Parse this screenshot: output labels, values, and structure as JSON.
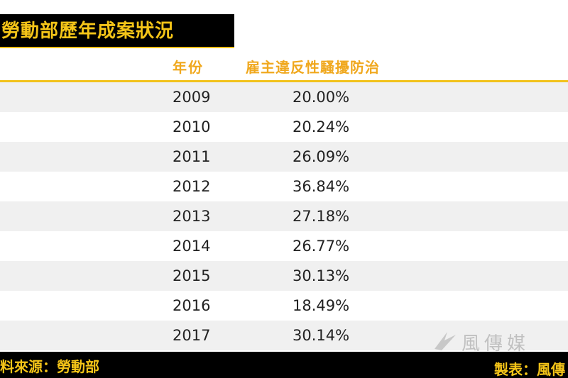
{
  "title": "勞動部歷年成案狀況",
  "table": {
    "headers": {
      "year": "年份",
      "rate": "雇主違反性騷擾防治"
    },
    "rows": [
      {
        "year": "2009",
        "rate": "20.00%"
      },
      {
        "year": "2010",
        "rate": "20.24%"
      },
      {
        "year": "2011",
        "rate": "26.09%"
      },
      {
        "year": "2012",
        "rate": "36.84%"
      },
      {
        "year": "2013",
        "rate": "27.18%"
      },
      {
        "year": "2014",
        "rate": "26.77%"
      },
      {
        "year": "2015",
        "rate": "30.13%"
      },
      {
        "year": "2016",
        "rate": "18.49%"
      },
      {
        "year": "2017",
        "rate": "30.14%"
      }
    ]
  },
  "footer": {
    "source": "料來源：勞動部",
    "maker": "製表：風傳"
  },
  "watermark": {
    "text": "風傳媒",
    "icon": "storm-media-logo-icon"
  },
  "colors": {
    "accent": "#f2c21c",
    "header_text": "#f0a81e",
    "bar_bg": "#000000",
    "row_alt": "#f0f0f0"
  }
}
